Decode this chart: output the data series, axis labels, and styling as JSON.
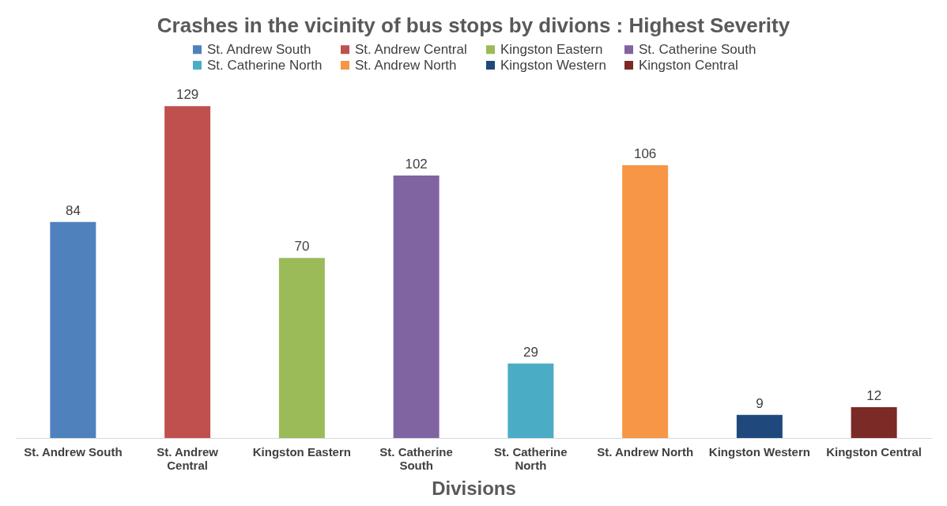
{
  "chart_data": {
    "type": "bar",
    "title": "Crashes in the vicinity of bus stops by divions : Highest Severity",
    "xlabel": "Divisions",
    "categories": [
      "St. Andrew South",
      "St. Andrew Central",
      "Kingston Eastern",
      "St. Catherine South",
      "St. Catherine North",
      "St. Andrew North",
      "Kingston Western",
      "Kingston Central"
    ],
    "series": [
      {
        "name": "St. Andrew South",
        "color": "#4f81bd",
        "values": [
          84,
          null,
          null,
          null,
          null,
          null,
          null,
          null
        ]
      },
      {
        "name": "St. Andrew Central",
        "color": "#c0504d",
        "values": [
          null,
          129,
          null,
          null,
          null,
          null,
          null,
          null
        ]
      },
      {
        "name": "Kingston Eastern",
        "color": "#9bbb59",
        "values": [
          null,
          null,
          70,
          null,
          null,
          null,
          null,
          null
        ]
      },
      {
        "name": "St. Catherine South",
        "color": "#8064a2",
        "values": [
          null,
          null,
          null,
          102,
          null,
          null,
          null,
          null
        ]
      },
      {
        "name": "St. Catherine North",
        "color": "#4bacc6",
        "values": [
          null,
          null,
          null,
          null,
          29,
          null,
          null,
          null
        ]
      },
      {
        "name": "St. Andrew North",
        "color": "#f79646",
        "values": [
          null,
          null,
          null,
          null,
          null,
          106,
          null,
          null
        ]
      },
      {
        "name": "Kingston Western",
        "color": "#1f497d",
        "values": [
          null,
          null,
          null,
          null,
          null,
          null,
          9,
          null
        ]
      },
      {
        "name": "Kingston Central",
        "color": "#7b2a26",
        "values": [
          null,
          null,
          null,
          null,
          null,
          null,
          null,
          12
        ]
      }
    ],
    "data_labels": true,
    "legend": "top"
  }
}
